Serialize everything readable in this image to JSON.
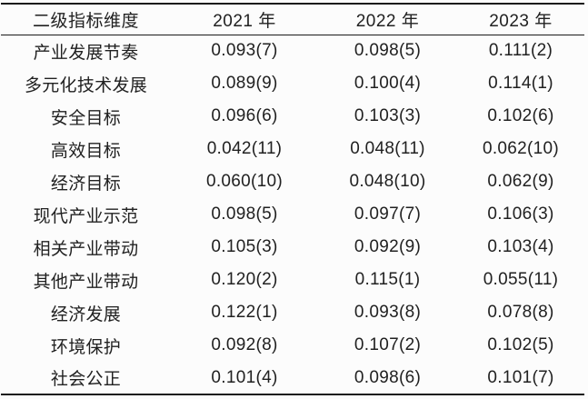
{
  "table": {
    "header": {
      "dimension_label": "二级指标维度",
      "years": [
        "2021 年",
        "2022 年",
        "2023 年"
      ]
    },
    "rows": [
      {
        "label": "产业发展节奏",
        "values": [
          "0.093(7)",
          "0.098(5)",
          "0.111(2)"
        ]
      },
      {
        "label": "多元化技术发展",
        "values": [
          "0.089(9)",
          "0.100(4)",
          "0.114(1)"
        ]
      },
      {
        "label": "安全目标",
        "values": [
          "0.096(6)",
          "0.103(3)",
          "0.102(6)"
        ]
      },
      {
        "label": "高效目标",
        "values": [
          "0.042(11)",
          "0.048(11)",
          "0.062(10)"
        ]
      },
      {
        "label": "经济目标",
        "values": [
          "0.060(10)",
          "0.048(10)",
          "0.062(9)"
        ]
      },
      {
        "label": "现代产业示范",
        "values": [
          "0.098(5)",
          "0.097(7)",
          "0.106(3)"
        ]
      },
      {
        "label": "相关产业带动",
        "values": [
          "0.105(3)",
          "0.092(9)",
          "0.103(4)"
        ]
      },
      {
        "label": "其他产业带动",
        "values": [
          "0.120(2)",
          "0.115(1)",
          "0.055(11)"
        ]
      },
      {
        "label": "经济发展",
        "values": [
          "0.122(1)",
          "0.093(8)",
          "0.078(8)"
        ]
      },
      {
        "label": "环境保护",
        "values": [
          "0.092(8)",
          "0.107(2)",
          "0.102(5)"
        ]
      },
      {
        "label": "社会公正",
        "values": [
          "0.101(4)",
          "0.098(6)",
          "0.101(7)"
        ]
      }
    ],
    "colors": {
      "text": "#212121",
      "rule": "#1a1a1a",
      "background": "#fcfcfc"
    }
  }
}
